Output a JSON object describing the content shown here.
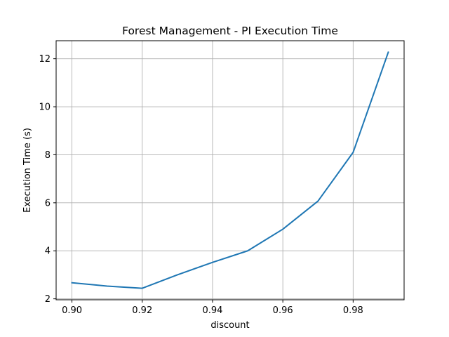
{
  "chart_data": {
    "type": "line",
    "title": "Forest Management - PI Execution Time",
    "xlabel": "discount",
    "ylabel": "Execution Time (s)",
    "x": [
      0.9,
      0.91,
      0.92,
      0.93,
      0.94,
      0.95,
      0.96,
      0.97,
      0.98,
      0.99
    ],
    "series": [
      {
        "values": [
          2.67,
          2.53,
          2.44,
          3.0,
          3.52,
          4.0,
          4.9,
          6.07,
          8.1,
          12.27
        ],
        "color": "#1f77b4"
      }
    ],
    "xlim": [
      0.8955,
      0.9945
    ],
    "ylim": [
      1.96,
      12.75
    ],
    "xticks": [
      0.9,
      0.92,
      0.94,
      0.96,
      0.98
    ],
    "xtick_labels": [
      "0.90",
      "0.92",
      "0.94",
      "0.96",
      "0.98"
    ],
    "yticks": [
      2,
      4,
      6,
      8,
      10,
      12
    ],
    "ytick_labels": [
      "2",
      "4",
      "6",
      "8",
      "10",
      "12"
    ],
    "grid": true,
    "grid_color": "#b0b0b0",
    "axis_color": "#000000"
  }
}
